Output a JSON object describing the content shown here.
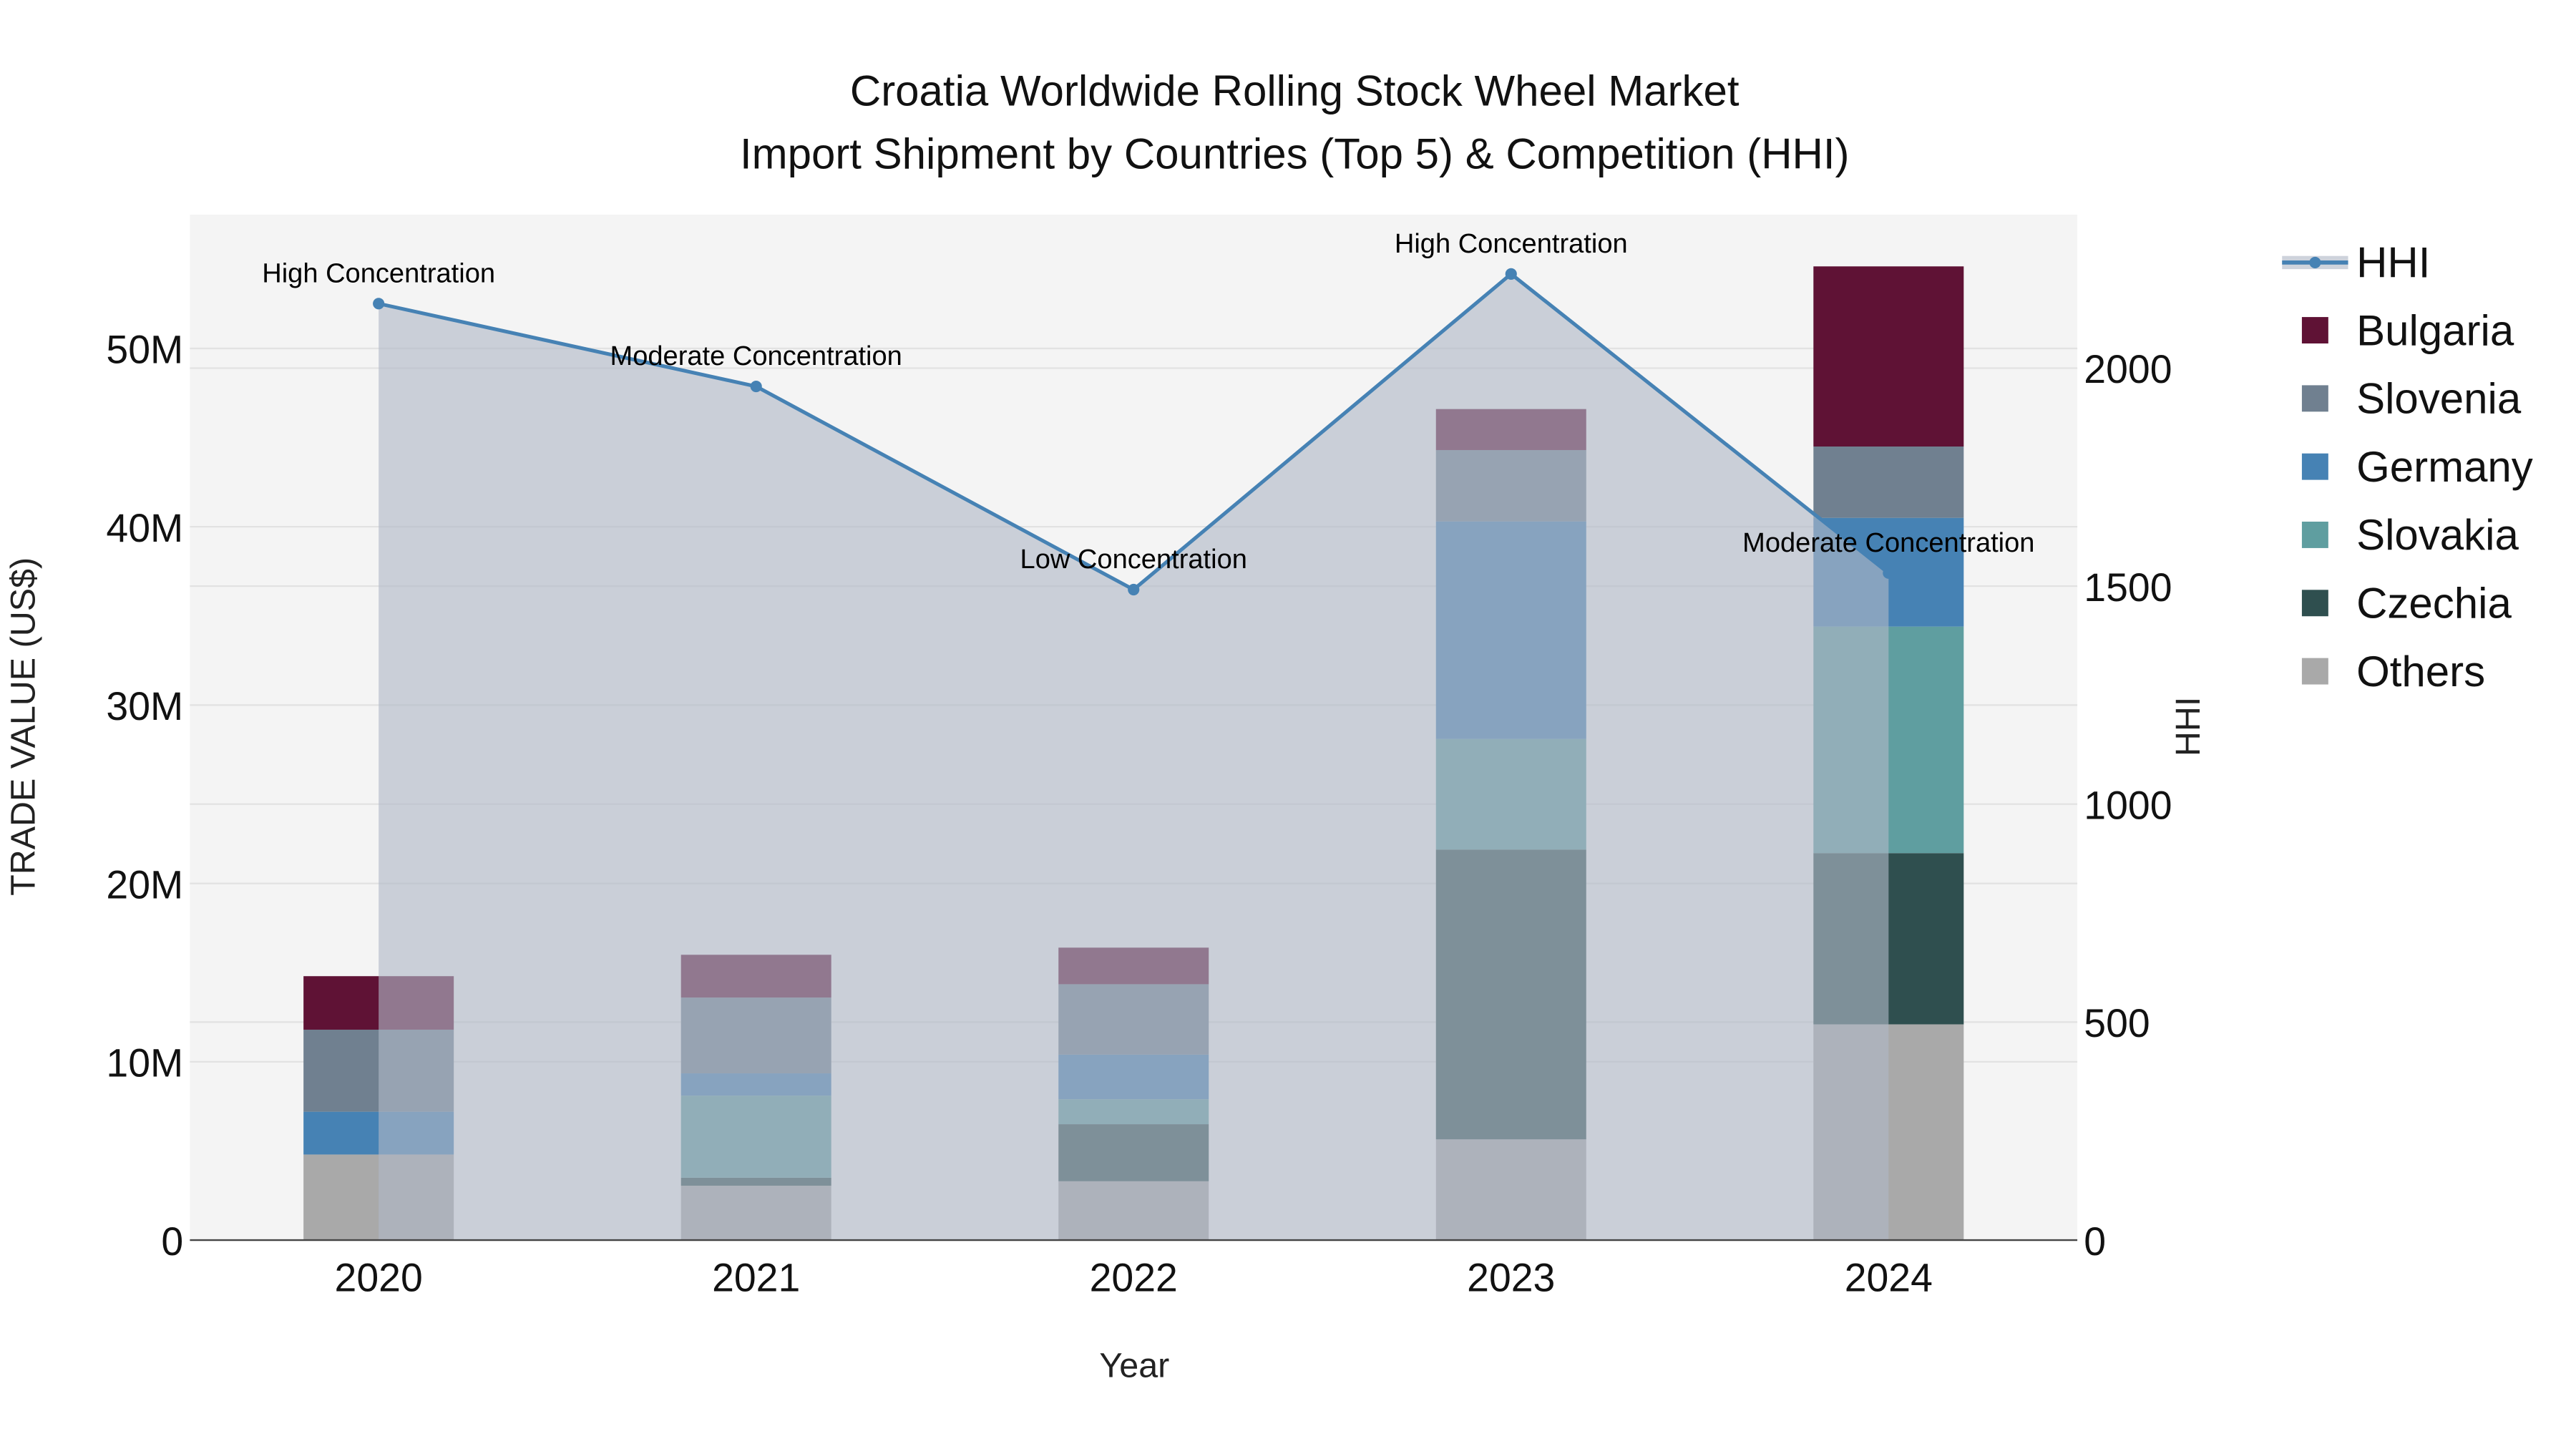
{
  "chart_data": {
    "type": "bar",
    "stacked": true,
    "title": "Croatia Worldwide Rolling Stock Wheel Market",
    "subtitle": "Import Shipment by Countries (Top 5) & Competition (HHI)",
    "xlabel": "Year",
    "ylabel": "TRADE VALUE (US$)",
    "y2label": "HHI",
    "categories": [
      "2020",
      "2021",
      "2022",
      "2023",
      "2024"
    ],
    "ylim": [
      0,
      57500000
    ],
    "y2lim": [
      0,
      2352
    ],
    "yticks": [
      {
        "v": 0,
        "label": "0"
      },
      {
        "v": 10000000,
        "label": "10M"
      },
      {
        "v": 20000000,
        "label": "20M"
      },
      {
        "v": 30000000,
        "label": "30M"
      },
      {
        "v": 40000000,
        "label": "40M"
      },
      {
        "v": 50000000,
        "label": "50M"
      }
    ],
    "y2ticks": [
      {
        "v": 0,
        "label": "0"
      },
      {
        "v": 500,
        "label": "500"
      },
      {
        "v": 1000,
        "label": "1000"
      },
      {
        "v": 1500,
        "label": "1500"
      },
      {
        "v": 2000,
        "label": "2000"
      }
    ],
    "series": [
      {
        "name": "Others",
        "color": "#a9a9a9",
        "values": [
          4800000,
          3050000,
          3300000,
          5650000,
          12100000
        ]
      },
      {
        "name": "Czechia",
        "color": "#2f4f4f",
        "values": [
          0,
          450000,
          3200000,
          16250000,
          9600000
        ]
      },
      {
        "name": "Slovakia",
        "color": "#5f9ea0",
        "values": [
          0,
          4600000,
          1400000,
          6200000,
          12700000
        ]
      },
      {
        "name": "Germany",
        "color": "#4682b4",
        "values": [
          2400000,
          1250000,
          2500000,
          12200000,
          6100000
        ]
      },
      {
        "name": "Slovenia",
        "color": "#708090",
        "values": [
          4600000,
          4250000,
          3950000,
          4000000,
          4000000
        ]
      },
      {
        "name": "Bulgaria",
        "color": "#5f1235",
        "values": [
          3000000,
          2400000,
          2050000,
          2300000,
          10100000
        ]
      }
    ],
    "hhi": {
      "name": "HHI",
      "color": "#4682b4",
      "values": [
        2148,
        1958,
        1492,
        2216,
        1530
      ],
      "annotations": [
        "High Concentration",
        "Moderate Concentration",
        "Low Concentration",
        "High Concentration",
        "Moderate Concentration"
      ]
    },
    "legend": [
      "HHI",
      "Bulgaria",
      "Slovenia",
      "Germany",
      "Slovakia",
      "Czechia",
      "Others"
    ],
    "legend_placement": "right",
    "grid": true
  }
}
